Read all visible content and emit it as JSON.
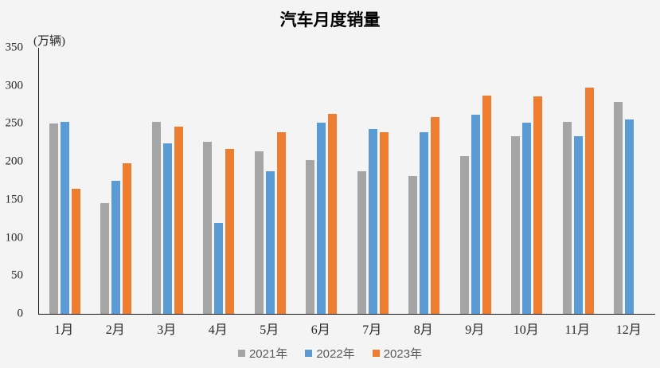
{
  "chart_data": {
    "type": "bar",
    "title": "汽车月度销量",
    "unit_label": "(万辆)",
    "categories": [
      "1月",
      "2月",
      "3月",
      "4月",
      "5月",
      "6月",
      "7月",
      "8月",
      "9月",
      "10月",
      "11月",
      "12月"
    ],
    "series": [
      {
        "name": "2021年",
        "color": "#A5A5A5",
        "values": [
          250,
          146,
          253,
          226,
          214,
          202,
          188,
          181,
          208,
          234,
          253,
          279
        ]
      },
      {
        "name": "2022年",
        "color": "#5B9BD5",
        "values": [
          253,
          175,
          224,
          119,
          188,
          251,
          243,
          239,
          262,
          252,
          234,
          256
        ]
      },
      {
        "name": "2023年",
        "color": "#ED7D31",
        "values": [
          165,
          198,
          246,
          217,
          239,
          263,
          239,
          259,
          287,
          286,
          298,
          null
        ]
      }
    ],
    "xlabel": "",
    "ylabel": "(万辆)",
    "ylim": [
      0,
      350
    ],
    "yticks": [
      0,
      50,
      100,
      150,
      200,
      250,
      300,
      350
    ],
    "grid": false,
    "legend_position": "bottom",
    "background_color": "#F4F4F4",
    "axis_color": "#1a1a1a"
  }
}
